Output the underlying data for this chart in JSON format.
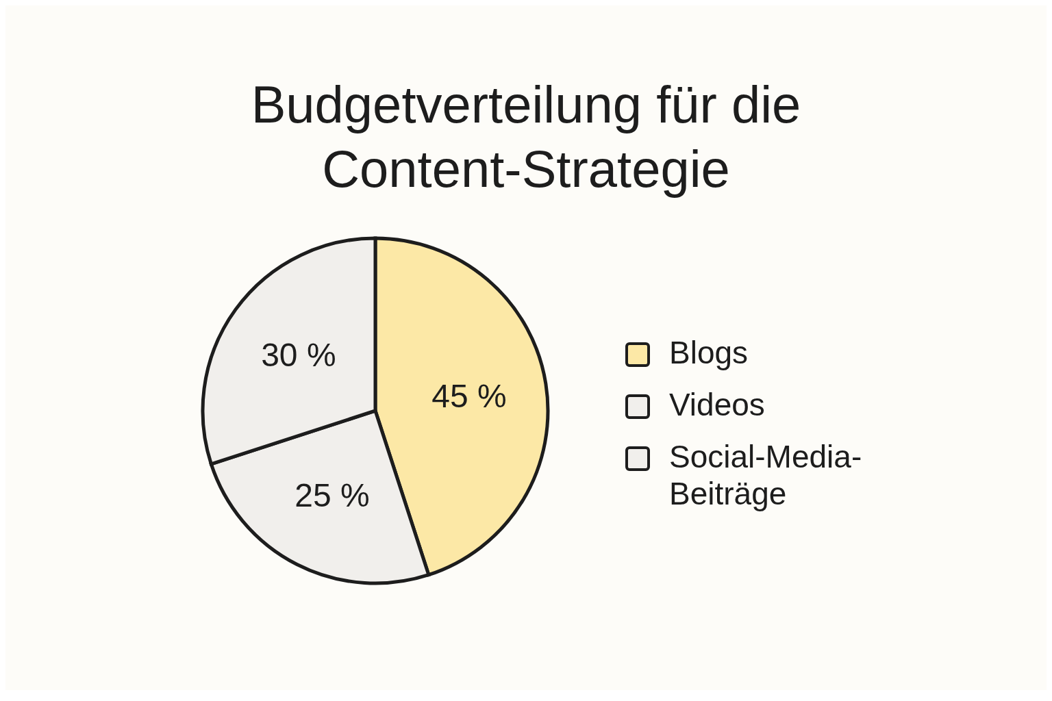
{
  "chart_data": {
    "type": "pie",
    "title": "Budgetverteilung für die Content-Strategie",
    "categories": [
      "Blogs",
      "Videos",
      "Social-Media-Beiträge"
    ],
    "values": [
      45,
      25,
      30
    ],
    "colors": [
      "#fce8a6",
      "#f1efec",
      "#f1efec"
    ],
    "value_labels": [
      "45 %",
      "25 %",
      "30 %"
    ],
    "legend": "right"
  }
}
